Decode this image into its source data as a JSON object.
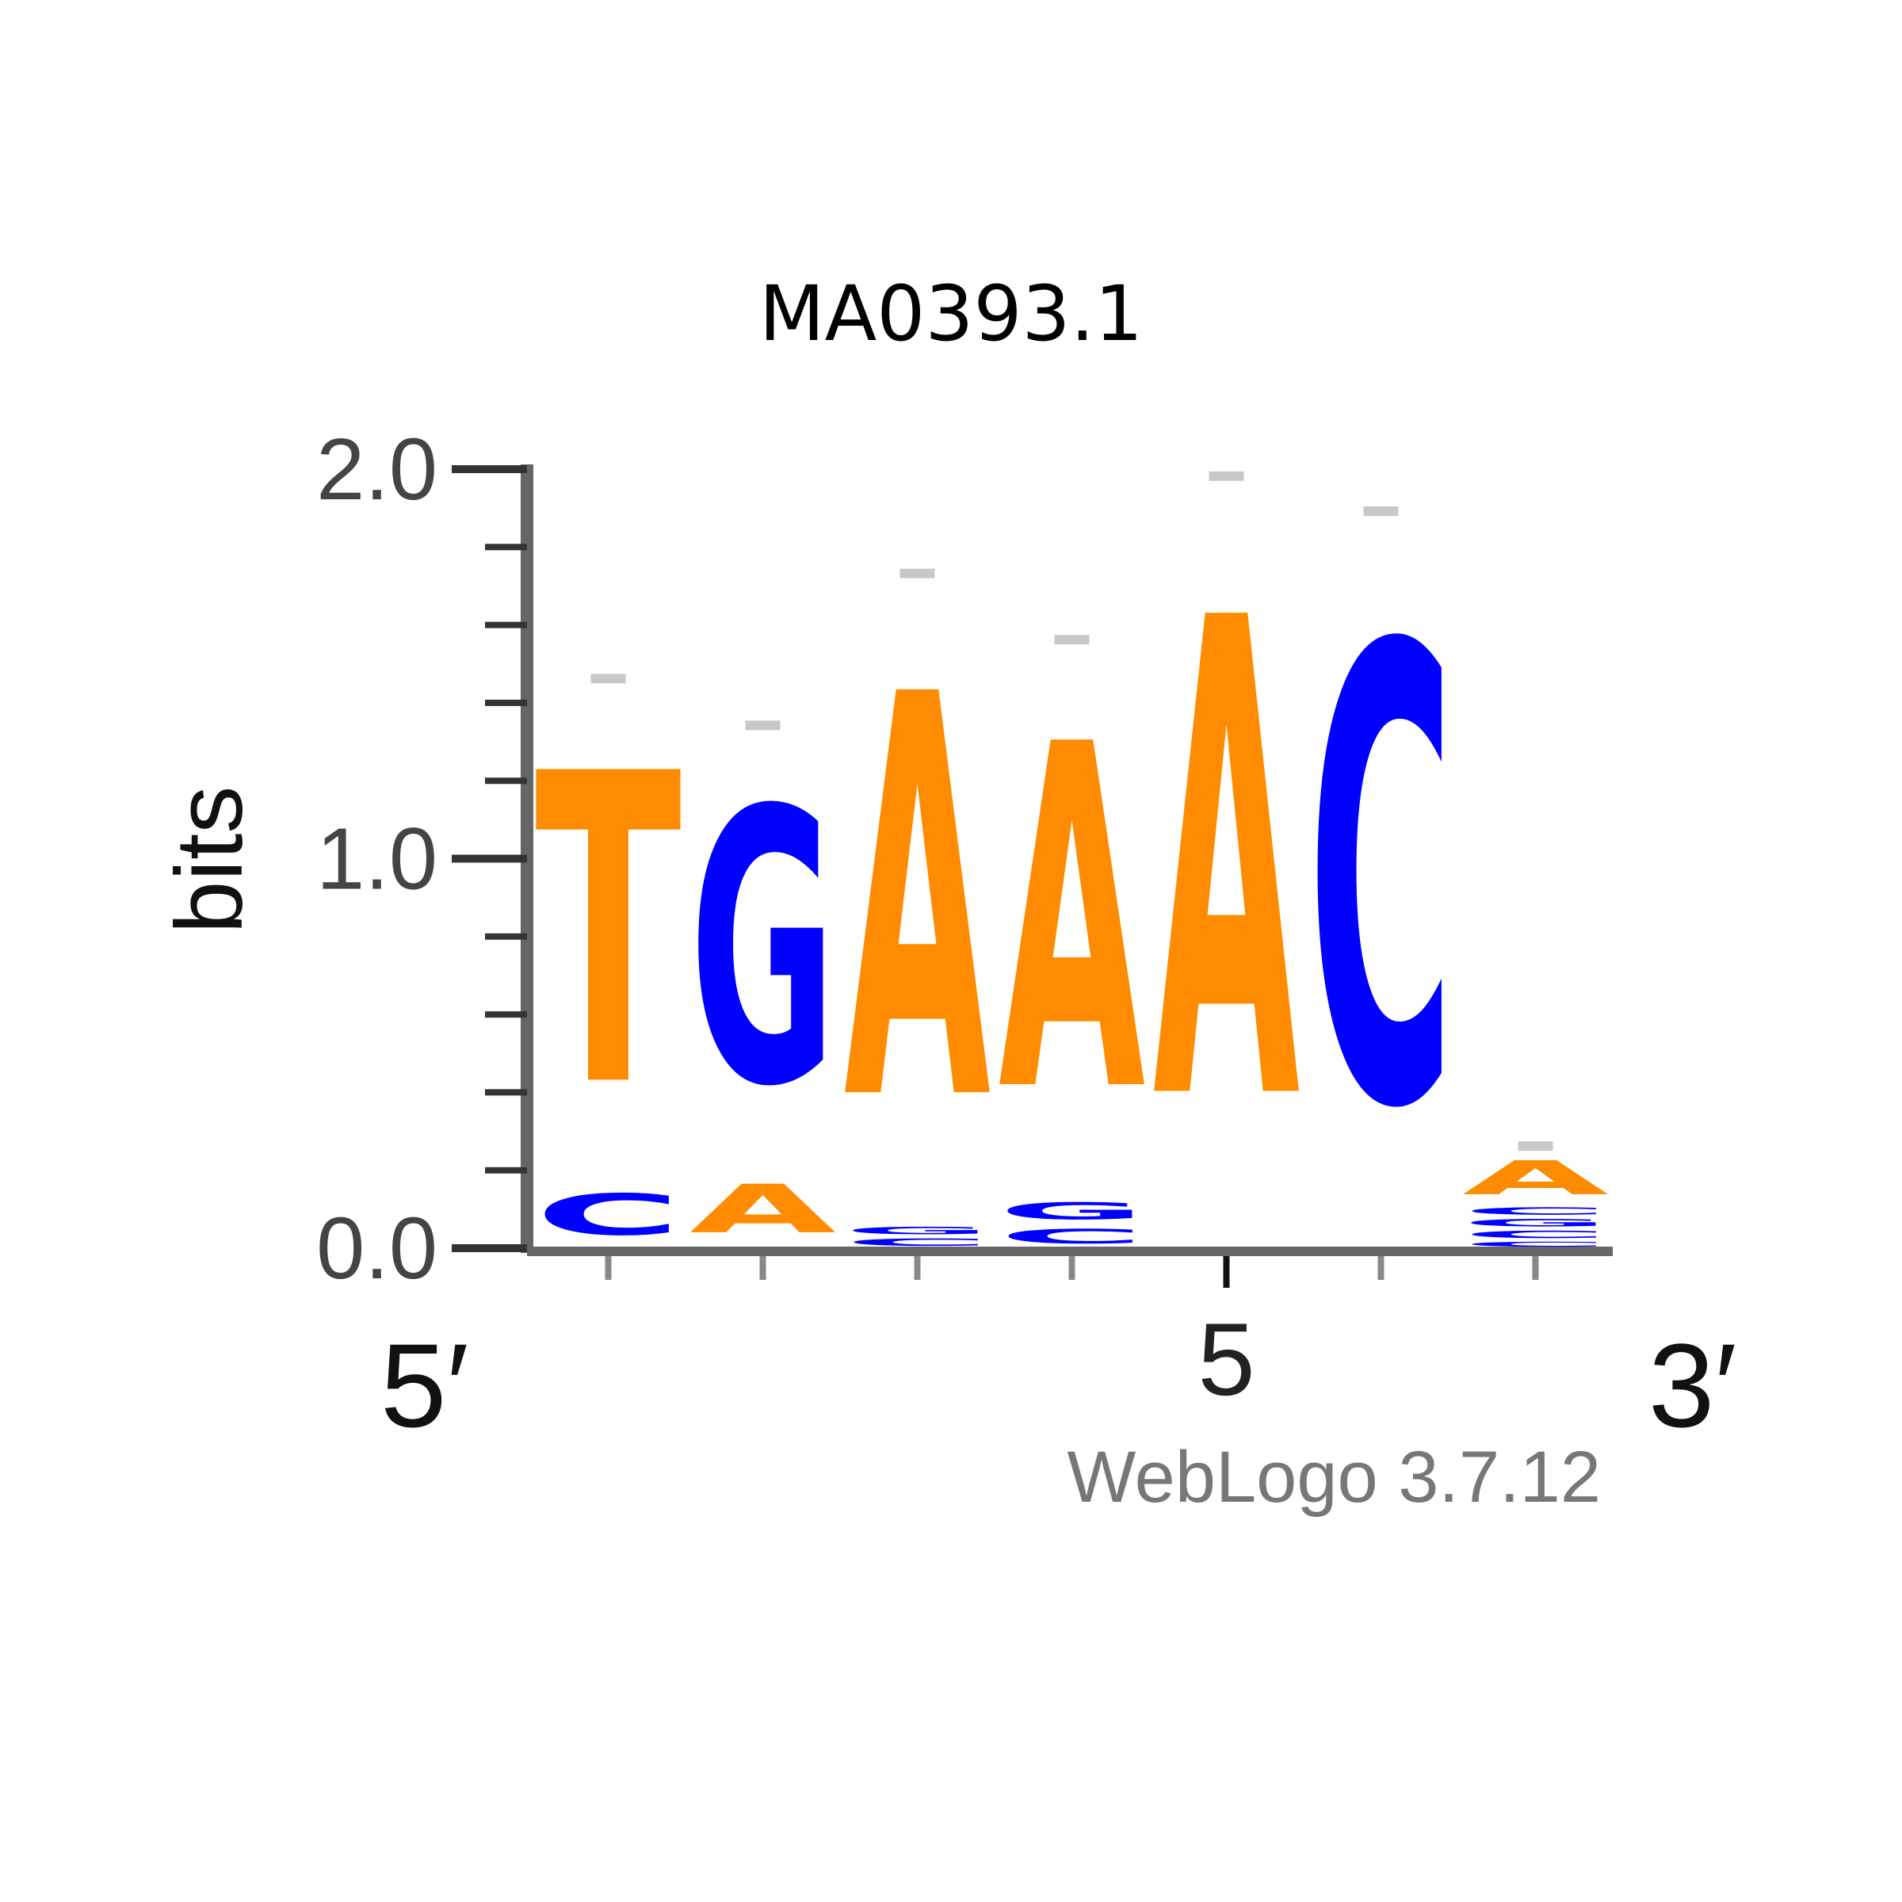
{
  "chart_data": {
    "type": "sequence-logo",
    "title": "MA0393.1",
    "ylabel": "bits",
    "ylim": [
      0,
      2.0
    ],
    "y_ticks": [
      "0.0",
      "1.0",
      "2.0"
    ],
    "x_label_left": "5′",
    "x_label_right": "3′",
    "x_tick_labels": [
      "",
      "",
      "",
      "",
      "5",
      "",
      ""
    ],
    "credit": "WebLogo 3.7.12",
    "colors": {
      "A": "#ff8c00",
      "C": "#0000ff",
      "G": "#0000ff",
      "T": "#ff8c00",
      "error": "#c8c8c8"
    },
    "positions": [
      {
        "pos": 1,
        "stack": [
          {
            "letter": "C",
            "bits": 0.17
          },
          {
            "letter": "T",
            "bits": 1.28
          }
        ]
      },
      {
        "pos": 2,
        "stack": [
          {
            "letter": "A",
            "bits": 0.2
          },
          {
            "letter": "G",
            "bits": 1.13
          }
        ]
      },
      {
        "pos": 3,
        "stack": [
          {
            "letter": "C",
            "bits": 0.03
          },
          {
            "letter": "G",
            "bits": 0.03
          },
          {
            "letter": "A",
            "bits": 1.66
          }
        ]
      },
      {
        "pos": 4,
        "stack": [
          {
            "letter": "C",
            "bits": 0.06
          },
          {
            "letter": "G",
            "bits": 0.07
          },
          {
            "letter": "A",
            "bits": 1.42
          }
        ]
      },
      {
        "pos": 5,
        "stack": [
          {
            "letter": "A",
            "bits": 1.97
          }
        ]
      },
      {
        "pos": 6,
        "stack": [
          {
            "letter": "C",
            "bits": 1.88
          }
        ]
      },
      {
        "pos": 7,
        "stack": [
          {
            "letter": "C",
            "bits": 0.02
          },
          {
            "letter": "C",
            "bits": 0.03
          },
          {
            "letter": "G",
            "bits": 0.03
          },
          {
            "letter": "C",
            "bits": 0.03
          },
          {
            "letter": "A",
            "bits": 0.14
          }
        ]
      }
    ]
  }
}
